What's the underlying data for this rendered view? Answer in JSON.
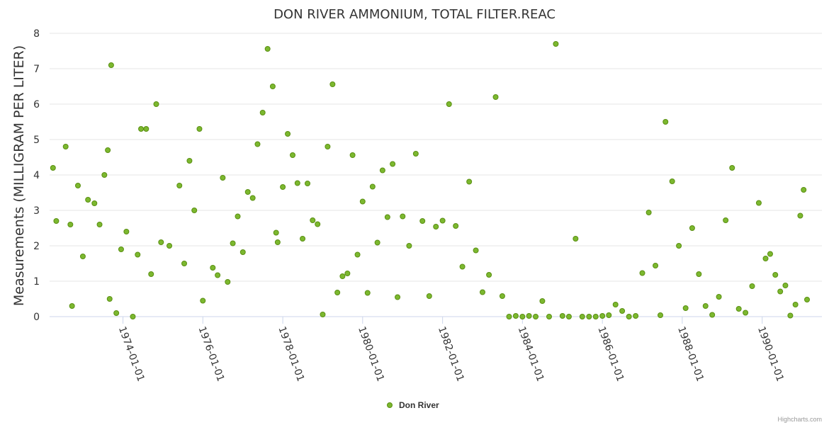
{
  "credits": "Highcharts.com",
  "chart_data": {
    "type": "scatter",
    "title": "DON RIVER AMMONIUM, TOTAL FILTER.REAC",
    "ylabel": "Measurements (MILLIGRAM PER LITER)",
    "xlabel": "",
    "ylim": [
      0,
      8
    ],
    "yticks": [
      "0",
      "1",
      "2",
      "3",
      "4",
      "5",
      "6",
      "7",
      "8"
    ],
    "xlim": [
      "1972-03-01",
      "1991-07-01"
    ],
    "xticks": [
      "1974-01-01",
      "1976-01-01",
      "1978-01-01",
      "1980-01-01",
      "1982-01-01",
      "1984-01-01",
      "1986-01-01",
      "1988-01-01",
      "1990-01-01"
    ],
    "grid": true,
    "legend": "bottom-center",
    "marker_color": "#7cb82f",
    "marker_stroke": "#5a8f12",
    "series": [
      {
        "name": "Don River",
        "points": [
          [
            "1972-04-01",
            4.2
          ],
          [
            "1972-05-01",
            2.7
          ],
          [
            "1972-07-26",
            4.8
          ],
          [
            "1972-09-07",
            2.6
          ],
          [
            "1972-09-22",
            0.3
          ],
          [
            "1972-11-15",
            3.7
          ],
          [
            "1972-12-30",
            1.7
          ],
          [
            "1973-02-15",
            3.3
          ],
          [
            "1973-04-15",
            3.2
          ],
          [
            "1973-06-01",
            2.6
          ],
          [
            "1973-07-15",
            4.0
          ],
          [
            "1973-08-15",
            4.7
          ],
          [
            "1973-09-01",
            0.5
          ],
          [
            "1973-09-15",
            7.1
          ],
          [
            "1973-11-01",
            0.1
          ],
          [
            "1973-12-15",
            1.9
          ],
          [
            "1974-02-01",
            2.4
          ],
          [
            "1974-04-01",
            0.0
          ],
          [
            "1974-05-15",
            1.75
          ],
          [
            "1974-06-15",
            5.3
          ],
          [
            "1974-08-01",
            5.3
          ],
          [
            "1974-09-15",
            1.2
          ],
          [
            "1974-11-01",
            6.0
          ],
          [
            "1974-12-15",
            2.1
          ],
          [
            "1975-03-01",
            2.0
          ],
          [
            "1975-06-01",
            3.7
          ],
          [
            "1975-07-15",
            1.5
          ],
          [
            "1975-09-01",
            4.4
          ],
          [
            "1975-10-15",
            3.0
          ],
          [
            "1975-12-01",
            5.3
          ],
          [
            "1976-01-01",
            0.45
          ],
          [
            "1976-04-01",
            1.38
          ],
          [
            "1976-05-15",
            1.17
          ],
          [
            "1976-07-01",
            3.92
          ],
          [
            "1976-08-15",
            0.98
          ],
          [
            "1976-10-01",
            2.07
          ],
          [
            "1976-11-15",
            2.83
          ],
          [
            "1977-01-01",
            1.82
          ],
          [
            "1977-02-15",
            3.52
          ],
          [
            "1977-04-01",
            3.35
          ],
          [
            "1977-05-15",
            4.87
          ],
          [
            "1977-07-01",
            5.76
          ],
          [
            "1977-08-15",
            7.56
          ],
          [
            "1977-10-01",
            6.5
          ],
          [
            "1977-11-01",
            2.37
          ],
          [
            "1977-11-15",
            2.1
          ],
          [
            "1978-01-01",
            3.66
          ],
          [
            "1978-02-15",
            5.16
          ],
          [
            "1978-04-01",
            4.56
          ],
          [
            "1978-05-15",
            3.77
          ],
          [
            "1978-07-01",
            2.2
          ],
          [
            "1978-08-15",
            3.76
          ],
          [
            "1978-10-01",
            2.72
          ],
          [
            "1978-11-15",
            2.61
          ],
          [
            "1979-01-01",
            0.06
          ],
          [
            "1979-02-15",
            4.8
          ],
          [
            "1979-04-01",
            6.56
          ],
          [
            "1979-05-15",
            0.68
          ],
          [
            "1979-07-01",
            1.14
          ],
          [
            "1979-08-15",
            1.22
          ],
          [
            "1979-10-01",
            4.56
          ],
          [
            "1979-11-15",
            1.75
          ],
          [
            "1980-01-01",
            3.25
          ],
          [
            "1980-02-15",
            0.67
          ],
          [
            "1980-04-01",
            3.67
          ],
          [
            "1980-05-15",
            2.09
          ],
          [
            "1980-07-01",
            4.13
          ],
          [
            "1980-08-15",
            2.81
          ],
          [
            "1980-10-01",
            4.31
          ],
          [
            "1980-11-15",
            0.55
          ],
          [
            "1981-01-01",
            2.83
          ],
          [
            "1981-03-01",
            2.0
          ],
          [
            "1981-05-01",
            4.6
          ],
          [
            "1981-07-01",
            2.7
          ],
          [
            "1981-09-01",
            0.58
          ],
          [
            "1981-11-01",
            2.54
          ],
          [
            "1982-01-01",
            2.71
          ],
          [
            "1982-03-01",
            6.0
          ],
          [
            "1982-05-01",
            2.56
          ],
          [
            "1982-07-01",
            1.41
          ],
          [
            "1982-09-01",
            3.81
          ],
          [
            "1982-11-01",
            1.87
          ],
          [
            "1983-01-01",
            0.69
          ],
          [
            "1983-03-01",
            1.18
          ],
          [
            "1983-05-01",
            6.2
          ],
          [
            "1983-07-01",
            0.58
          ],
          [
            "1983-09-01",
            0.0
          ],
          [
            "1983-11-01",
            0.02
          ],
          [
            "1984-01-01",
            0.0
          ],
          [
            "1984-03-01",
            0.02
          ],
          [
            "1984-05-01",
            0.0
          ],
          [
            "1984-07-01",
            0.44
          ],
          [
            "1984-09-01",
            0.0
          ],
          [
            "1984-11-01",
            7.7
          ],
          [
            "1985-01-01",
            0.02
          ],
          [
            "1985-03-01",
            0.0
          ],
          [
            "1985-05-01",
            2.2
          ],
          [
            "1985-07-01",
            0.0
          ],
          [
            "1985-09-01",
            0.0
          ],
          [
            "1985-11-01",
            0.0
          ],
          [
            "1986-01-01",
            0.02
          ],
          [
            "1986-03-01",
            0.04
          ],
          [
            "1986-05-01",
            0.34
          ],
          [
            "1986-07-01",
            0.16
          ],
          [
            "1986-09-01",
            0.0
          ],
          [
            "1986-11-01",
            0.02
          ],
          [
            "1987-01-01",
            1.23
          ],
          [
            "1987-03-01",
            2.94
          ],
          [
            "1987-05-01",
            1.44
          ],
          [
            "1987-06-15",
            0.04
          ],
          [
            "1987-08-01",
            5.5
          ],
          [
            "1987-10-01",
            3.82
          ],
          [
            "1987-12-01",
            2.0
          ],
          [
            "1988-02-01",
            0.24
          ],
          [
            "1988-04-01",
            2.5
          ],
          [
            "1988-06-01",
            1.2
          ],
          [
            "1988-08-01",
            0.3
          ],
          [
            "1988-10-01",
            0.05
          ],
          [
            "1988-12-01",
            0.56
          ],
          [
            "1989-02-01",
            2.72
          ],
          [
            "1989-04-01",
            4.2
          ],
          [
            "1989-06-01",
            0.22
          ],
          [
            "1989-08-01",
            0.11
          ],
          [
            "1989-10-01",
            0.86
          ],
          [
            "1989-12-01",
            3.21
          ],
          [
            "1990-02-01",
            1.64
          ],
          [
            "1990-03-15",
            1.77
          ],
          [
            "1990-05-01",
            1.18
          ],
          [
            "1990-06-15",
            0.71
          ],
          [
            "1990-08-01",
            0.88
          ],
          [
            "1990-09-15",
            0.03
          ],
          [
            "1990-11-01",
            0.34
          ],
          [
            "1990-12-15",
            2.85
          ],
          [
            "1991-01-15",
            3.58
          ],
          [
            "1991-02-15",
            0.48
          ]
        ]
      }
    ]
  }
}
